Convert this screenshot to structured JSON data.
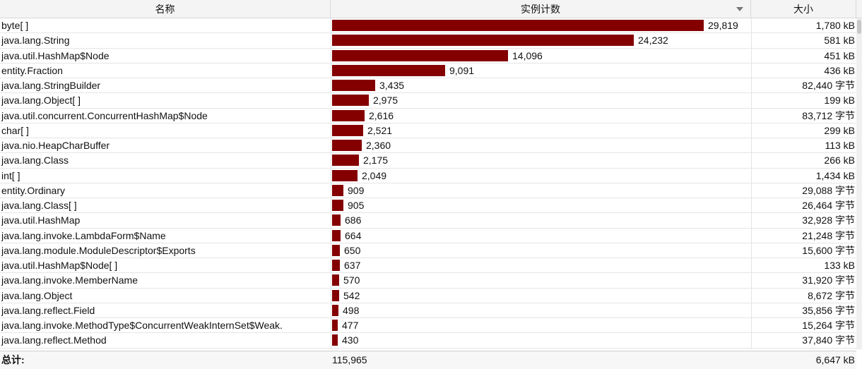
{
  "columns": {
    "name": "名称",
    "count": "实例计数",
    "size": "大小"
  },
  "rows": [
    {
      "name": "byte[ ]",
      "count": "29,819",
      "count_value": 29819,
      "size": "1,780 kB"
    },
    {
      "name": "java.lang.String",
      "count": "24,232",
      "count_value": 24232,
      "size": "581 kB"
    },
    {
      "name": "java.util.HashMap$Node",
      "count": "14,096",
      "count_value": 14096,
      "size": "451 kB"
    },
    {
      "name": "entity.Fraction",
      "count": "9,091",
      "count_value": 9091,
      "size": "436 kB"
    },
    {
      "name": "java.lang.StringBuilder",
      "count": "3,435",
      "count_value": 3435,
      "size": "82,440 字节"
    },
    {
      "name": "java.lang.Object[ ]",
      "count": "2,975",
      "count_value": 2975,
      "size": "199 kB"
    },
    {
      "name": "java.util.concurrent.ConcurrentHashMap$Node",
      "count": "2,616",
      "count_value": 2616,
      "size": "83,712 字节"
    },
    {
      "name": "char[ ]",
      "count": "2,521",
      "count_value": 2521,
      "size": "299 kB"
    },
    {
      "name": "java.nio.HeapCharBuffer",
      "count": "2,360",
      "count_value": 2360,
      "size": "113 kB"
    },
    {
      "name": "java.lang.Class",
      "count": "2,175",
      "count_value": 2175,
      "size": "266 kB"
    },
    {
      "name": "int[ ]",
      "count": "2,049",
      "count_value": 2049,
      "size": "1,434 kB"
    },
    {
      "name": "entity.Ordinary",
      "count": "909",
      "count_value": 909,
      "size": "29,088 字节"
    },
    {
      "name": "java.lang.Class[ ]",
      "count": "905",
      "count_value": 905,
      "size": "26,464 字节"
    },
    {
      "name": "java.util.HashMap",
      "count": "686",
      "count_value": 686,
      "size": "32,928 字节"
    },
    {
      "name": "java.lang.invoke.LambdaForm$Name",
      "count": "664",
      "count_value": 664,
      "size": "21,248 字节"
    },
    {
      "name": "java.lang.module.ModuleDescriptor$Exports",
      "count": "650",
      "count_value": 650,
      "size": "15,600 字节"
    },
    {
      "name": "java.util.HashMap$Node[ ]",
      "count": "637",
      "count_value": 637,
      "size": "133 kB"
    },
    {
      "name": "java.lang.invoke.MemberName",
      "count": "570",
      "count_value": 570,
      "size": "31,920 字节"
    },
    {
      "name": "java.lang.Object",
      "count": "542",
      "count_value": 542,
      "size": "8,672 字节"
    },
    {
      "name": "java.lang.reflect.Field",
      "count": "498",
      "count_value": 498,
      "size": "35,856 字节"
    },
    {
      "name": "java.lang.invoke.MethodType$ConcurrentWeakInternSet$Weak.",
      "count": "477",
      "count_value": 477,
      "size": "15,264 字节"
    },
    {
      "name": "java.lang.reflect.Method",
      "count": "430",
      "count_value": 430,
      "size": "37,840 字节"
    }
  ],
  "footer": {
    "label": "总计:",
    "count": "115,965",
    "size": "6,647 kB"
  },
  "colors": {
    "bar": "#840000"
  }
}
